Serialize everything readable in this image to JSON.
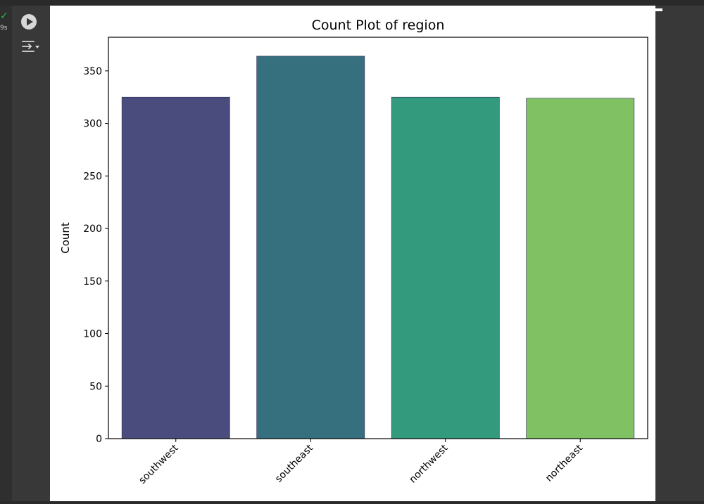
{
  "cell": {
    "status_check": "✓",
    "exec_time": "9s",
    "run_icon": "play-circle-icon",
    "output_icon": "output-toggle-icon"
  },
  "chart_data": {
    "type": "bar",
    "title": "Count Plot of region",
    "xlabel": "",
    "ylabel": "Count",
    "categories": [
      "southwest",
      "southeast",
      "northwest",
      "northeast"
    ],
    "values": [
      325,
      364,
      325,
      324
    ],
    "colors": [
      "#4a4c7e",
      "#36707f",
      "#349a7e",
      "#80c263"
    ],
    "ylim": [
      0,
      382
    ],
    "yticks": [
      0,
      50,
      100,
      150,
      200,
      250,
      300,
      350
    ],
    "grid": false
  }
}
